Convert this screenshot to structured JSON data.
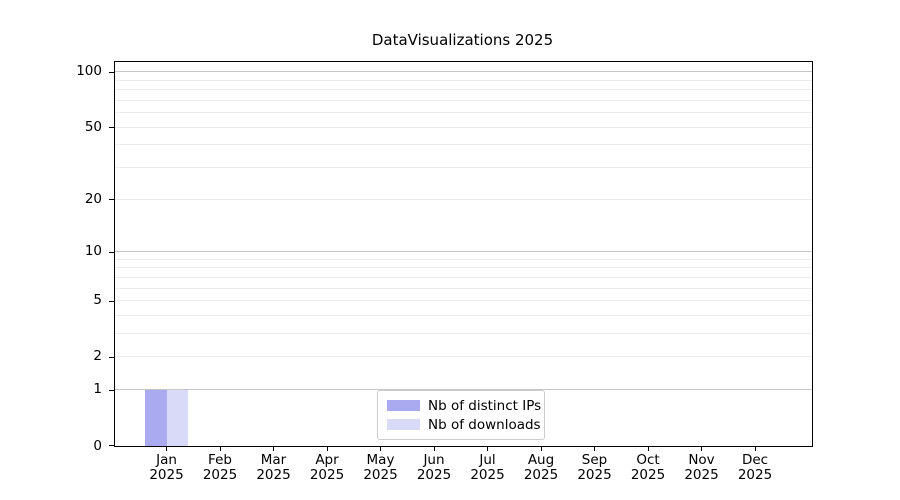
{
  "chart_data": {
    "type": "bar",
    "title": "DataVisualizations 2025",
    "categories": [
      "Jan",
      "Feb",
      "Mar",
      "Apr",
      "May",
      "Jun",
      "Jul",
      "Aug",
      "Sep",
      "Oct",
      "Nov",
      "Dec"
    ],
    "x_tick_labels": [
      {
        "month": "Jan",
        "year": "2025"
      },
      {
        "month": "Feb",
        "year": "2025"
      },
      {
        "month": "Mar",
        "year": "2025"
      },
      {
        "month": "Apr",
        "year": "2025"
      },
      {
        "month": "May",
        "year": "2025"
      },
      {
        "month": "Jun",
        "year": "2025"
      },
      {
        "month": "Jul",
        "year": "2025"
      },
      {
        "month": "Aug",
        "year": "2025"
      },
      {
        "month": "Sep",
        "year": "2025"
      },
      {
        "month": "Oct",
        "year": "2025"
      },
      {
        "month": "Nov",
        "year": "2025"
      },
      {
        "month": "Dec",
        "year": "2025"
      }
    ],
    "series": [
      {
        "name": "Nb of distinct IPs",
        "color": "#aaaaf0",
        "values": [
          1,
          0,
          0,
          0,
          0,
          0,
          0,
          0,
          0,
          0,
          0,
          0
        ]
      },
      {
        "name": "Nb of downloads",
        "color": "#d9d9f8",
        "values": [
          1,
          0,
          0,
          0,
          0,
          0,
          0,
          0,
          0,
          0,
          0,
          0
        ]
      }
    ],
    "y_axis": {
      "scale": "log10(1+v)",
      "ticks": [
        {
          "value": 0,
          "label": "0"
        },
        {
          "value": 1,
          "label": "1"
        },
        {
          "value": 2,
          "label": "2"
        },
        {
          "value": 5,
          "label": "5"
        },
        {
          "value": 10,
          "label": "10"
        },
        {
          "value": 20,
          "label": "20"
        },
        {
          "value": 50,
          "label": "50"
        },
        {
          "value": 100,
          "label": "100"
        }
      ],
      "range": [
        0,
        113
      ],
      "major_grid_values": [
        1,
        10,
        100
      ],
      "minor_grid_values": [
        2,
        3,
        4,
        5,
        6,
        7,
        8,
        9,
        20,
        30,
        40,
        50,
        60,
        70,
        80,
        90
      ]
    },
    "legend": {
      "position": "lower-center",
      "entries": [
        "Nb of distinct IPs",
        "Nb of downloads"
      ]
    },
    "grid": true,
    "colors": {
      "major_grid": "#c6c6c6",
      "minor_grid": "#ebebeb",
      "axis": "#000000",
      "legend_border": "#cccccc",
      "background": "#ffffff"
    }
  }
}
